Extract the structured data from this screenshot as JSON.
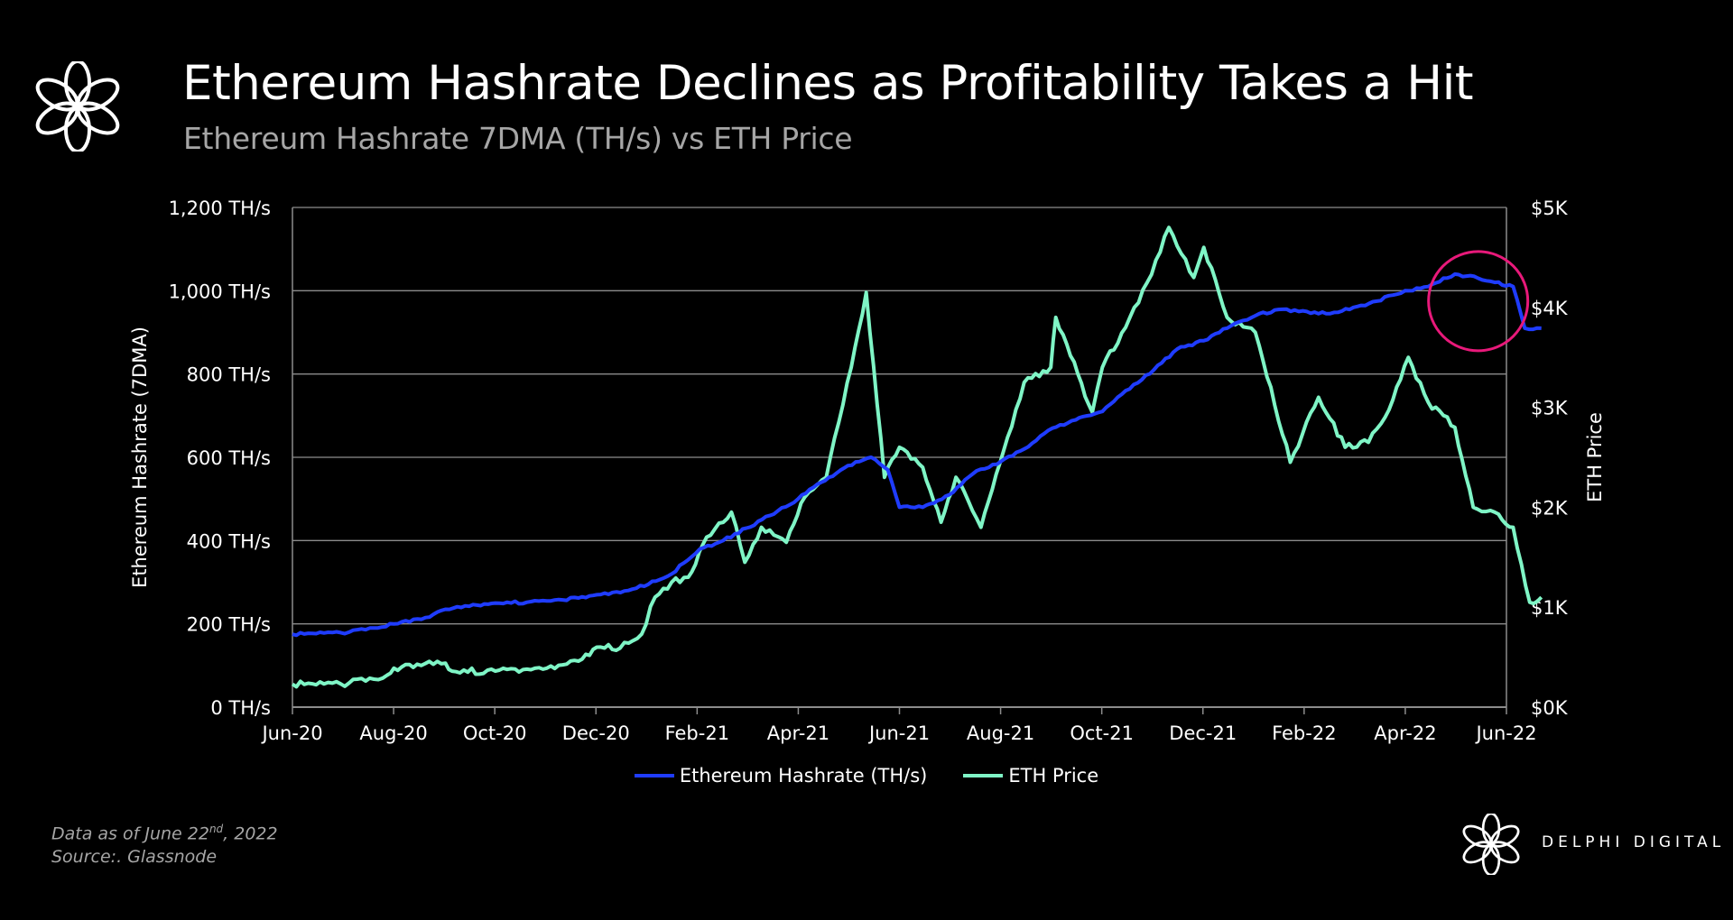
{
  "header": {
    "title": "Ethereum Hashrate Declines as Profitability Takes a Hit",
    "subtitle": "Ethereum Hashrate 7DMA (TH/s) vs ETH Price"
  },
  "footer": {
    "data_as_of_prefix": "Data as of June 22",
    "data_as_of_sup": "nd",
    "data_as_of_suffix": ", 2022",
    "source": "Source:. Glassnode",
    "brand": "DELPHI DIGITAL"
  },
  "colors": {
    "hashrate": "#1f3cff",
    "price": "#7ff5c6",
    "highlight_circle": "#e8197a",
    "grid": "#8c8c8c"
  },
  "chart_data": {
    "type": "line",
    "xlabel": "",
    "ylabel_left": "Ethereum Hashrate (7DMA)",
    "ylabel_right": "ETH Price",
    "x_ticks": [
      "Jun-20",
      "Aug-20",
      "Oct-20",
      "Dec-20",
      "Feb-21",
      "Apr-21",
      "Jun-21",
      "Aug-21",
      "Oct-21",
      "Dec-21",
      "Feb-22",
      "Apr-22",
      "Jun-22"
    ],
    "x_range": [
      "2020-06-01",
      "2022-06-01"
    ],
    "y_left_ticks": [
      "0 TH/s",
      "200 TH/s",
      "400 TH/s",
      "600 TH/s",
      "800 TH/s",
      "1,000 TH/s",
      "1,200 TH/s"
    ],
    "y_left_range": [
      0,
      1200
    ],
    "y_right_ticks": [
      "$0K",
      "$1K",
      "$2K",
      "$3K",
      "$4K",
      "$5K"
    ],
    "y_right_range": [
      0,
      5000
    ],
    "grid": "horizontal",
    "legend_position": "bottom",
    "annotation": "circle around hashrate decline in May–Jun 2022",
    "series": [
      {
        "name": "Ethereum Hashrate (TH/s)",
        "axis": "left",
        "points": [
          [
            "2020-06-01",
            175
          ],
          [
            "2020-06-20",
            178
          ],
          [
            "2020-07-05",
            180
          ],
          [
            "2020-07-20",
            190
          ],
          [
            "2020-08-01",
            200
          ],
          [
            "2020-08-20",
            215
          ],
          [
            "2020-09-01",
            235
          ],
          [
            "2020-09-20",
            245
          ],
          [
            "2020-10-01",
            250
          ],
          [
            "2020-10-20",
            252
          ],
          [
            "2020-11-01",
            255
          ],
          [
            "2020-11-20",
            262
          ],
          [
            "2020-12-01",
            270
          ],
          [
            "2020-12-20",
            280
          ],
          [
            "2021-01-01",
            295
          ],
          [
            "2021-01-15",
            320
          ],
          [
            "2021-02-01",
            380
          ],
          [
            "2021-02-15",
            400
          ],
          [
            "2021-03-01",
            430
          ],
          [
            "2021-03-15",
            460
          ],
          [
            "2021-04-01",
            500
          ],
          [
            "2021-04-15",
            540
          ],
          [
            "2021-05-01",
            580
          ],
          [
            "2021-05-15",
            600
          ],
          [
            "2021-05-25",
            570
          ],
          [
            "2021-06-01",
            480
          ],
          [
            "2021-06-15",
            480
          ],
          [
            "2021-07-01",
            510
          ],
          [
            "2021-07-15",
            560
          ],
          [
            "2021-08-01",
            590
          ],
          [
            "2021-08-15",
            620
          ],
          [
            "2021-09-01",
            670
          ],
          [
            "2021-09-15",
            690
          ],
          [
            "2021-10-01",
            710
          ],
          [
            "2021-10-15",
            760
          ],
          [
            "2021-11-01",
            810
          ],
          [
            "2021-11-15",
            860
          ],
          [
            "2021-12-01",
            880
          ],
          [
            "2021-12-15",
            910
          ],
          [
            "2022-01-01",
            940
          ],
          [
            "2022-01-15",
            955
          ],
          [
            "2022-02-01",
            950
          ],
          [
            "2022-02-15",
            945
          ],
          [
            "2022-03-01",
            960
          ],
          [
            "2022-03-15",
            975
          ],
          [
            "2022-04-01",
            1000
          ],
          [
            "2022-04-15",
            1010
          ],
          [
            "2022-05-01",
            1040
          ],
          [
            "2022-05-15",
            1030
          ],
          [
            "2022-05-25",
            1020
          ],
          [
            "2022-06-05",
            1010
          ],
          [
            "2022-06-12",
            910
          ],
          [
            "2022-06-22",
            910
          ]
        ]
      },
      {
        "name": "ETH Price",
        "axis": "right",
        "points": [
          [
            "2020-06-01",
            230
          ],
          [
            "2020-06-20",
            232
          ],
          [
            "2020-07-05",
            240
          ],
          [
            "2020-07-20",
            280
          ],
          [
            "2020-07-28",
            320
          ],
          [
            "2020-08-01",
            390
          ],
          [
            "2020-08-15",
            430
          ],
          [
            "2020-09-01",
            440
          ],
          [
            "2020-09-05",
            360
          ],
          [
            "2020-10-01",
            360
          ],
          [
            "2020-10-20",
            380
          ],
          [
            "2020-11-01",
            390
          ],
          [
            "2020-11-20",
            460
          ],
          [
            "2020-12-01",
            600
          ],
          [
            "2020-12-15",
            590
          ],
          [
            "2020-12-28",
            730
          ],
          [
            "2021-01-05",
            1100
          ],
          [
            "2021-01-15",
            1250
          ],
          [
            "2021-01-25",
            1300
          ],
          [
            "2021-02-05",
            1700
          ],
          [
            "2021-02-20",
            1950
          ],
          [
            "2021-02-28",
            1450
          ],
          [
            "2021-03-10",
            1800
          ],
          [
            "2021-03-25",
            1650
          ],
          [
            "2021-04-05",
            2100
          ],
          [
            "2021-04-18",
            2300
          ],
          [
            "2021-05-03",
            3400
          ],
          [
            "2021-05-12",
            4150
          ],
          [
            "2021-05-23",
            2300
          ],
          [
            "2021-06-01",
            2600
          ],
          [
            "2021-06-15",
            2400
          ],
          [
            "2021-06-26",
            1850
          ],
          [
            "2021-07-05",
            2300
          ],
          [
            "2021-07-20",
            1800
          ],
          [
            "2021-08-05",
            2700
          ],
          [
            "2021-08-15",
            3250
          ],
          [
            "2021-08-31",
            3400
          ],
          [
            "2021-09-03",
            3900
          ],
          [
            "2021-09-25",
            2950
          ],
          [
            "2021-10-01",
            3400
          ],
          [
            "2021-10-15",
            3800
          ],
          [
            "2021-10-28",
            4250
          ],
          [
            "2021-11-10",
            4800
          ],
          [
            "2021-11-25",
            4300
          ],
          [
            "2021-12-01",
            4600
          ],
          [
            "2021-12-15",
            3900
          ],
          [
            "2022-01-01",
            3750
          ],
          [
            "2022-01-22",
            2450
          ],
          [
            "2022-02-08",
            3100
          ],
          [
            "2022-02-24",
            2600
          ],
          [
            "2022-03-10",
            2650
          ],
          [
            "2022-03-20",
            2900
          ],
          [
            "2022-04-03",
            3500
          ],
          [
            "2022-04-15",
            3050
          ],
          [
            "2022-05-01",
            2800
          ],
          [
            "2022-05-12",
            2000
          ],
          [
            "2022-05-25",
            1950
          ],
          [
            "2022-06-05",
            1800
          ],
          [
            "2022-06-15",
            1050
          ],
          [
            "2022-06-22",
            1100
          ]
        ]
      }
    ]
  }
}
